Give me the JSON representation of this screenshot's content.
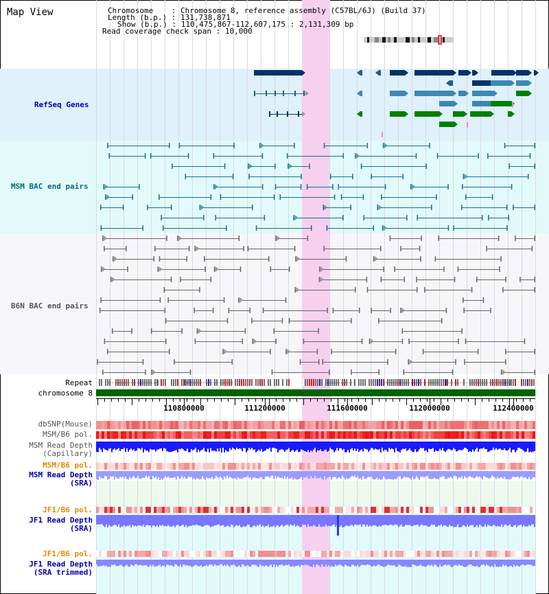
{
  "title": "Map View",
  "header": {
    "chromosome_label": "Chromosome",
    "chromosome_value": "Chromosome 8, reference assembly (C57BL/6J) (Build 37)",
    "length_label": "Length (b.p.)",
    "length_value": "131,738,871",
    "show_label": "Show (b.p.)",
    "show_value": "110,475,867-112,607,175 : 2,131,309 bp",
    "coverage_label": "Read coverage check span",
    "coverage_value": "10,000"
  },
  "tracks": {
    "refseq": "RefSeq Genes",
    "msm_bac": "MSM BAC end pairs",
    "b6n_bac": "B6N BAC end pairs",
    "repeat": "Repeat",
    "chromosome": "chromosome 8",
    "dbsnp": "dbSNP(Mouse)",
    "msm_b6_pol_1": "MSM/B6 pol.",
    "msm_depth_cap_1": "MSM Read Depth",
    "msm_depth_cap_2": "(Capillary)",
    "msm_b6_pol_2": "MSM/B6 pol.",
    "msm_depth_sra_1": "MSM Read Depth",
    "msm_depth_sra_2": "(SRA)",
    "jf1_pol_1": "JF1/B6 pol.",
    "jf1_depth_sra_1": "JF1 Read Depth",
    "jf1_depth_sra_2": "(SRA)",
    "jf1_pol_2": "JF1/B6 pol.",
    "jf1_depth_trim_1": "JF1 Read Depth",
    "jf1_depth_trim_2": "(SRA trimmed)"
  },
  "axis": {
    "ticks": [
      "110800000",
      "111200000",
      "111600000",
      "112000000",
      "112400000"
    ]
  },
  "colors": {
    "refseq_bg": "#dff1fb",
    "msm_bg": "#e2fafa",
    "highlight": "#f7d0ef",
    "chromosome_bar": "#006400",
    "refseq_label": "#0000b0",
    "msm_label": "#006a80",
    "pol_label": "#e08a00"
  }
}
